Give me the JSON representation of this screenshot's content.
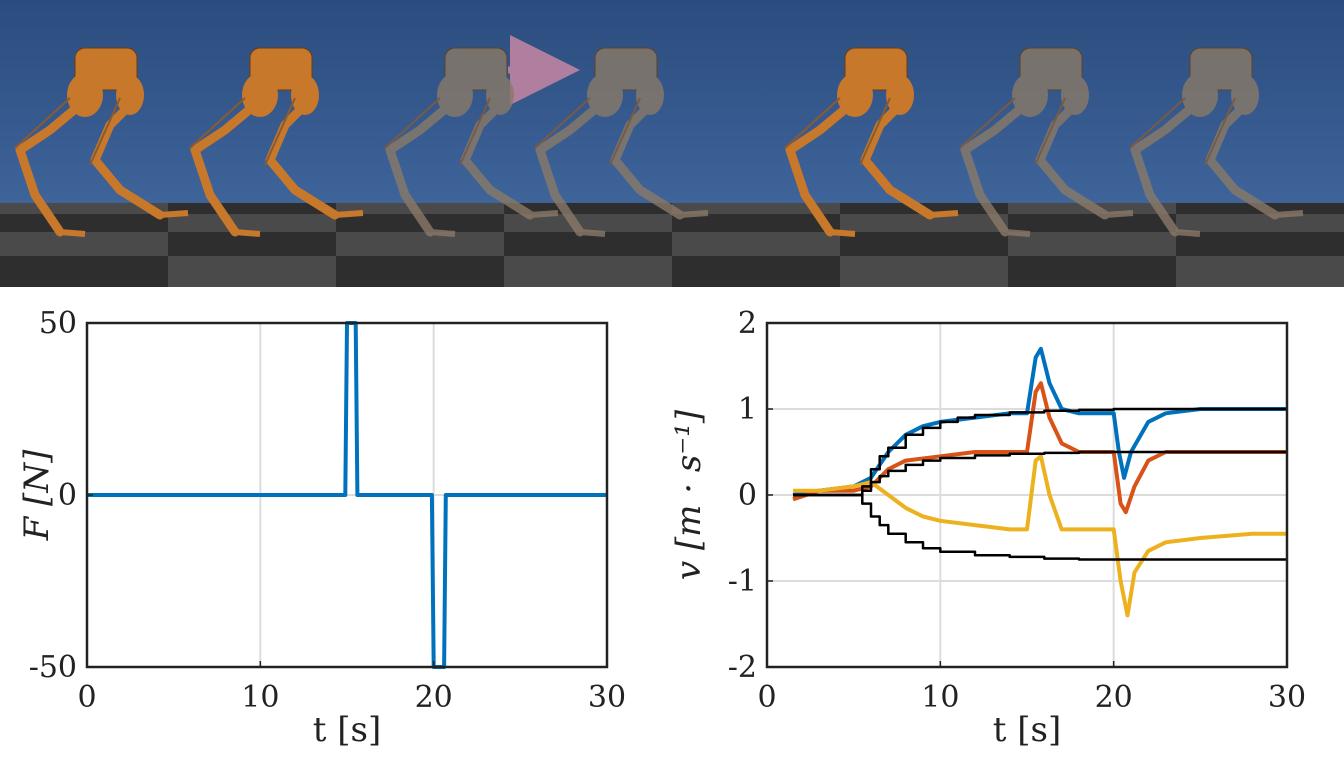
{
  "scene": {
    "sky_top": "#2b4c7e",
    "sky_bottom": "#3e649a",
    "floor_dark": "#2e2e2e",
    "floor_light": "#4a4a4a",
    "robot_color": "#c8782a",
    "robot_ghost_color": "#8a7a68",
    "arrow_color": "#b07fa0",
    "robot_poses": [
      {
        "name": "robot-pose-1",
        "ghost": false
      },
      {
        "name": "robot-pose-2",
        "ghost": false
      },
      {
        "name": "robot-pose-3",
        "ghost": true
      },
      {
        "name": "robot-pose-4",
        "ghost": true
      },
      {
        "name": "robot-pose-5",
        "ghost": false
      },
      {
        "name": "robot-pose-6",
        "ghost": true
      },
      {
        "name": "robot-pose-7",
        "ghost": true
      }
    ]
  },
  "chart_data": [
    {
      "type": "line",
      "xlabel": "t [s]",
      "ylabel": "F [N]",
      "xlim": [
        0,
        30
      ],
      "ylim": [
        -50,
        50
      ],
      "xticks": [
        0,
        10,
        20,
        30
      ],
      "yticks": [
        -50,
        0,
        50
      ],
      "xtick_labels": [
        "0",
        "10",
        "20",
        "30"
      ],
      "ytick_labels": [
        "-50",
        "0",
        "50"
      ],
      "grid": true,
      "series": [
        {
          "color": "#0072bd",
          "x": [
            0,
            14.9,
            15.0,
            15.5,
            15.6,
            19.9,
            20.0,
            20.6,
            20.7,
            30
          ],
          "y": [
            0,
            0,
            50,
            50,
            0,
            0,
            -50,
            -50,
            0,
            0
          ]
        }
      ]
    },
    {
      "type": "line",
      "xlabel": "t [s]",
      "ylabel": "v [m · s⁻¹]",
      "xlim": [
        0,
        30
      ],
      "ylim": [
        -2,
        2
      ],
      "xticks": [
        0,
        10,
        20,
        30
      ],
      "yticks": [
        -2,
        -1,
        0,
        1,
        2
      ],
      "xtick_labels": [
        "0",
        "10",
        "20",
        "30"
      ],
      "ytick_labels": [
        "-2",
        "-1",
        "0",
        "1",
        "2"
      ],
      "grid": true,
      "series": [
        {
          "color": "#0072bd",
          "x": [
            1.5,
            3,
            5,
            6,
            7,
            8,
            9,
            10,
            12,
            14,
            15,
            15.5,
            15.8,
            16.3,
            17,
            18,
            19,
            20,
            20.3,
            20.6,
            21,
            22,
            23,
            25,
            28,
            30
          ],
          "y": [
            0,
            0.05,
            0.1,
            0.2,
            0.5,
            0.7,
            0.8,
            0.85,
            0.9,
            0.95,
            0.95,
            1.6,
            1.7,
            1.3,
            1.0,
            0.95,
            0.95,
            0.95,
            0.5,
            0.2,
            0.5,
            0.85,
            0.95,
            1.0,
            1.0,
            1.0
          ]
        },
        {
          "color": "#d95319",
          "x": [
            1.5,
            3,
            5,
            6,
            7,
            8,
            10,
            12,
            14,
            15,
            15.5,
            15.8,
            16.3,
            17,
            18,
            19,
            20,
            20.4,
            20.7,
            21.2,
            22,
            23,
            25,
            28,
            30
          ],
          "y": [
            -0.05,
            0.05,
            0.05,
            0.1,
            0.3,
            0.4,
            0.45,
            0.5,
            0.5,
            0.5,
            1.2,
            1.3,
            0.9,
            0.6,
            0.5,
            0.5,
            0.5,
            -0.1,
            -0.2,
            0.1,
            0.4,
            0.5,
            0.5,
            0.5,
            0.5
          ]
        },
        {
          "color": "#edb120",
          "x": [
            1.5,
            3,
            5,
            6,
            7,
            8,
            9,
            10,
            12,
            14,
            15,
            15.5,
            15.8,
            16.3,
            17,
            18,
            19,
            20,
            20.4,
            20.8,
            21.2,
            22,
            23,
            25,
            28,
            30
          ],
          "y": [
            0.05,
            0.05,
            0.1,
            0.15,
            0.0,
            -0.15,
            -0.25,
            -0.3,
            -0.35,
            -0.4,
            -0.4,
            0.4,
            0.45,
            0.0,
            -0.4,
            -0.4,
            -0.4,
            -0.4,
            -1.0,
            -1.4,
            -0.9,
            -0.65,
            -0.55,
            -0.5,
            -0.45,
            -0.45
          ]
        },
        {
          "color": "#000000",
          "x": [
            1.5,
            3,
            5,
            5.5,
            6,
            6.5,
            7,
            8,
            9,
            10,
            11,
            12,
            14,
            16,
            18,
            20,
            22,
            25,
            30
          ],
          "y": [
            0,
            0,
            0,
            0.1,
            0.3,
            0.45,
            0.55,
            0.7,
            0.78,
            0.85,
            0.9,
            0.93,
            0.96,
            0.98,
            0.99,
            1.0,
            1.0,
            1.0,
            1.0
          ]
        },
        {
          "color": "#000000",
          "x": [
            1.5,
            5,
            5.5,
            6,
            6.5,
            7,
            8,
            9,
            10,
            12,
            14,
            16,
            18,
            20,
            25,
            30
          ],
          "y": [
            0,
            0,
            0.05,
            0.15,
            0.22,
            0.28,
            0.35,
            0.4,
            0.43,
            0.46,
            0.48,
            0.49,
            0.5,
            0.5,
            0.5,
            0.5
          ]
        },
        {
          "color": "#000000",
          "x": [
            1.5,
            5,
            5.5,
            6,
            6.5,
            7,
            8,
            9,
            10,
            12,
            14,
            16,
            18,
            20,
            25,
            30
          ],
          "y": [
            0,
            0,
            -0.1,
            -0.25,
            -0.35,
            -0.45,
            -0.55,
            -0.62,
            -0.66,
            -0.7,
            -0.72,
            -0.74,
            -0.75,
            -0.75,
            -0.75,
            -0.75
          ]
        }
      ]
    }
  ]
}
